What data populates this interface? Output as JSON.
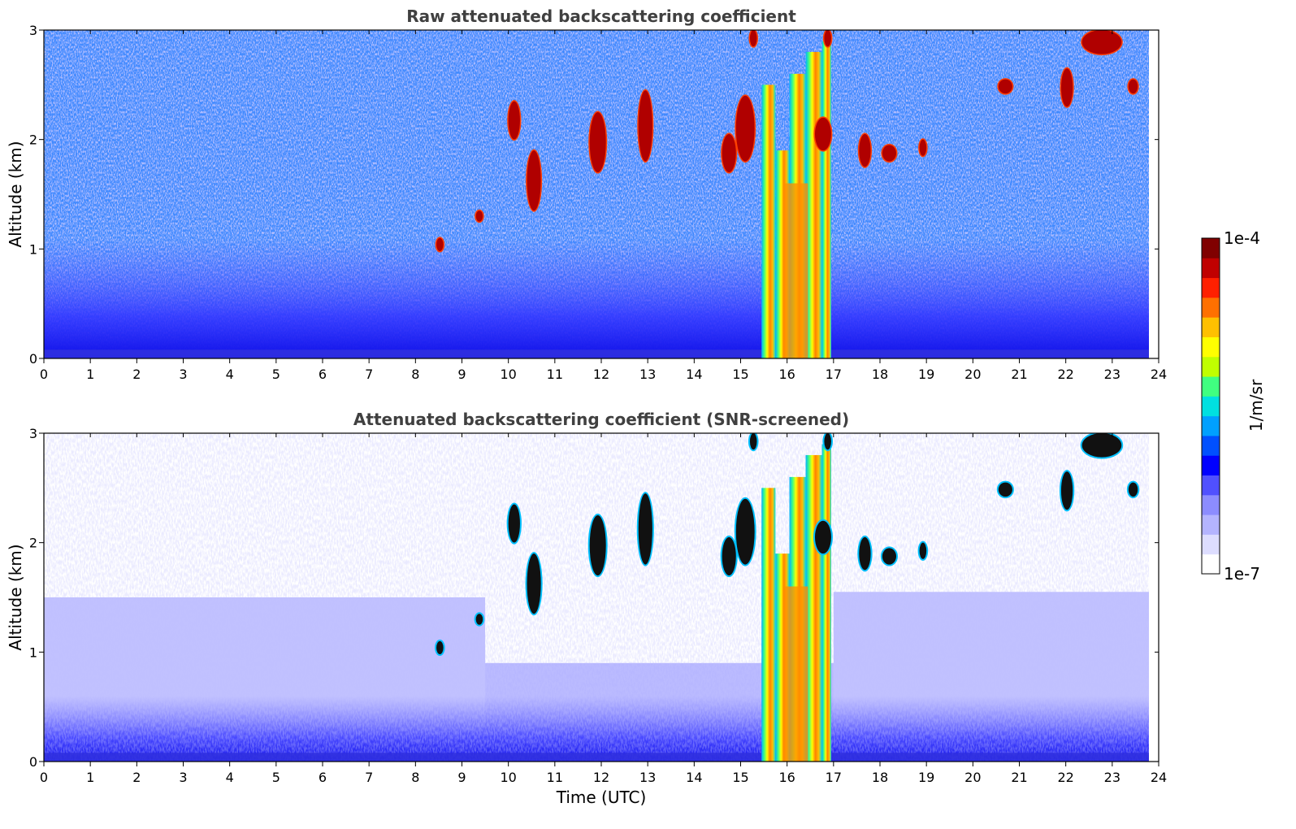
{
  "chart_data": [
    {
      "type": "heatmap",
      "title": "Raw attenuated backscattering coefficient",
      "xlabel": "",
      "ylabel": "Altitude (km)",
      "xlim": [
        0,
        24
      ],
      "ylim": [
        0,
        3
      ],
      "xticks": [
        0,
        1,
        2,
        3,
        4,
        5,
        6,
        7,
        8,
        9,
        10,
        11,
        12,
        13,
        14,
        15,
        16,
        17,
        18,
        19,
        20,
        21,
        22,
        23,
        24
      ],
      "yticks": [
        0,
        1,
        2,
        3
      ],
      "screened": false,
      "features": [
        {
          "x": [
            15.5,
            16.6
          ],
          "y": [
            0,
            2.6
          ],
          "value": "1e-5"
        },
        {
          "x": [
            16.6,
            16.9
          ],
          "y": [
            1.8,
            3.0
          ],
          "value": "1e-4"
        },
        {
          "x": [
            10.0,
            10.7
          ],
          "y": [
            1.4,
            2.3
          ],
          "value": "1e-4"
        },
        {
          "x": [
            11.8,
            12.1
          ],
          "y": [
            1.7,
            2.3
          ],
          "value": "1e-4"
        },
        {
          "x": [
            12.8,
            13.1
          ],
          "y": [
            1.8,
            2.5
          ],
          "value": "1e-4"
        },
        {
          "x": [
            14.6,
            15.0
          ],
          "y": [
            1.6,
            2.1
          ],
          "value": "1e-4"
        },
        {
          "x": [
            17.6,
            17.8
          ],
          "y": [
            1.8,
            2.0
          ],
          "value": "1e-4"
        },
        {
          "x": [
            18.1,
            18.3
          ],
          "y": [
            1.8,
            2.0
          ],
          "value": "1e-4"
        },
        {
          "x": [
            18.9,
            19.0
          ],
          "y": [
            1.9,
            2.0
          ],
          "value": "1e-4"
        },
        {
          "x": [
            20.6,
            20.8
          ],
          "y": [
            2.4,
            2.5
          ],
          "value": "1e-4"
        },
        {
          "x": [
            21.9,
            22.2
          ],
          "y": [
            2.3,
            2.6
          ],
          "value": "1e-4"
        },
        {
          "x": [
            22.4,
            23.2
          ],
          "y": [
            2.8,
            3.0
          ],
          "value": "1e-4"
        },
        {
          "x": [
            23.4,
            23.6
          ],
          "y": [
            2.4,
            2.6
          ],
          "value": "1e-4"
        }
      ]
    },
    {
      "type": "heatmap",
      "title": "Attenuated backscattering coefficient (SNR-screened)",
      "xlabel": "Time (UTC)",
      "ylabel": "Altitude (km)",
      "xlim": [
        0,
        24
      ],
      "ylim": [
        0,
        3
      ],
      "xticks": [
        0,
        1,
        2,
        3,
        4,
        5,
        6,
        7,
        8,
        9,
        10,
        11,
        12,
        13,
        14,
        15,
        16,
        17,
        18,
        19,
        20,
        21,
        22,
        23,
        24
      ],
      "yticks": [
        0,
        1,
        2,
        3
      ],
      "screened": true
    }
  ],
  "colorbar": {
    "label": "1/m/sr",
    "max_label": "1e-4",
    "min_label": "1e-7",
    "colors": [
      "#ffffff",
      "#ddddff",
      "#b4b4ff",
      "#8c8cff",
      "#5050ff",
      "#0000ff",
      "#0050ff",
      "#00a0ff",
      "#00e0e0",
      "#40ff80",
      "#c0ff00",
      "#ffff00",
      "#ffc000",
      "#ff7000",
      "#ff2000",
      "#c00000",
      "#800000"
    ]
  }
}
